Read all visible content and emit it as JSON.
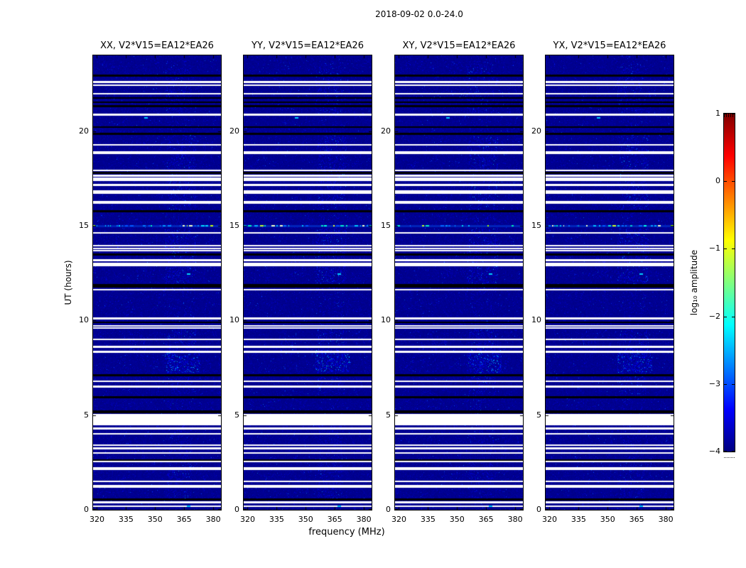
{
  "chart_data": {
    "type": "heatmap",
    "title": "2018-09-02 0.0-24.0",
    "panels": [
      {
        "title": "XX, V2*V15=EA12*EA26"
      },
      {
        "title": "YY, V2*V15=EA12*EA26"
      },
      {
        "title": "XY, V2*V15=EA12*EA26"
      },
      {
        "title": "YX, V2*V15=EA12*EA26"
      }
    ],
    "x_axis": {
      "label": "frequency (MHz)",
      "range": [
        318,
        384
      ],
      "ticks": [
        320,
        335,
        350,
        365,
        380
      ]
    },
    "y_axis": {
      "label": "UT (hours)",
      "range": [
        0,
        24
      ],
      "ticks": [
        0,
        5,
        10,
        15,
        20
      ]
    },
    "colorbar": {
      "label": "log₁₀ amplitude",
      "range": [
        -4,
        1
      ],
      "ticks": [
        1,
        0,
        -1,
        -2,
        -3,
        -4
      ],
      "colormap": "jet",
      "gradient_stops": [
        [
          "#000080",
          0
        ],
        [
          "#0000ff",
          0.125
        ],
        [
          "#00ffff",
          0.375
        ],
        [
          "#ffff00",
          0.625
        ],
        [
          "#ff0000",
          0.875
        ],
        [
          "#800000",
          1
        ]
      ]
    },
    "background_value_color": "#00008c",
    "grid": false,
    "missing_data_rows_ut": [
      [
        0.14,
        0.23
      ],
      [
        0.33,
        0.46
      ],
      [
        1.15,
        1.32
      ],
      [
        1.45,
        1.55
      ],
      [
        2.09,
        2.26
      ],
      [
        2.5,
        2.6
      ],
      [
        2.95,
        3.05
      ],
      [
        3.18,
        3.31
      ],
      [
        3.37,
        3.46
      ],
      [
        3.97,
        4.06
      ],
      [
        4.23,
        4.36
      ],
      [
        4.45,
        5.05
      ],
      [
        6.44,
        6.57
      ],
      [
        6.74,
        6.84
      ],
      [
        8.28,
        8.41
      ],
      [
        8.54,
        8.67
      ],
      [
        8.95,
        9.05
      ],
      [
        9.55,
        9.63
      ],
      [
        9.67,
        9.76
      ],
      [
        10.04,
        10.17
      ],
      [
        11.58,
        11.67
      ],
      [
        12.86,
        13.06
      ],
      [
        13.13,
        13.25
      ],
      [
        13.68,
        13.73
      ],
      [
        13.79,
        13.85
      ],
      [
        13.91,
        14.0
      ],
      [
        14.58,
        14.67
      ],
      [
        16.16,
        16.32
      ],
      [
        16.69,
        16.89
      ],
      [
        17.1,
        17.22
      ],
      [
        17.36,
        17.56
      ],
      [
        17.6,
        17.7
      ],
      [
        17.88,
        17.97
      ],
      [
        18.79,
        18.95
      ],
      [
        19.24,
        19.32
      ],
      [
        20.81,
        20.94
      ],
      [
        21.94,
        22.02
      ],
      [
        22.39,
        22.47
      ],
      [
        22.54,
        22.66
      ]
    ],
    "black_rows_ut": [
      [
        0.48,
        0.61
      ],
      [
        2.58,
        2.67
      ],
      [
        5.09,
        5.26
      ],
      [
        5.88,
        6.01
      ],
      [
        7.04,
        7.17
      ],
      [
        9.85,
        9.95
      ],
      [
        11.73,
        11.94
      ],
      [
        13.42,
        13.55
      ],
      [
        15.7,
        15.84
      ],
      [
        17.75,
        17.86
      ],
      [
        19.79,
        19.92
      ],
      [
        20.16,
        20.26
      ],
      [
        21.25,
        21.39
      ],
      [
        21.48,
        21.57
      ],
      [
        21.7,
        21.8
      ],
      [
        22.87,
        23.0
      ]
    ],
    "bright_row_ut": [
      14.93,
      15.05
    ],
    "rfi_patches": [
      {
        "ut": [
          7.25,
          8.45
        ],
        "mhz": [
          355,
          373
        ],
        "intensity": 1.0
      },
      {
        "ut": [
          8.45,
          9.6
        ],
        "mhz": [
          356,
          371
        ],
        "intensity": 0.5
      },
      {
        "ut": [
          6.1,
          7.25
        ],
        "mhz": [
          356,
          370
        ],
        "intensity": 0.45
      },
      {
        "ut": [
          11.6,
          14.9
        ],
        "mhz": [
          355,
          371
        ],
        "intensity": 0.55
      },
      {
        "ut": [
          15.8,
          19.9
        ],
        "mhz": [
          356,
          371
        ],
        "intensity": 0.5
      },
      {
        "ut": [
          20.8,
          23.4
        ],
        "mhz": [
          355,
          369
        ],
        "intensity": 0.4
      },
      {
        "ut": [
          0.6,
          2.7
        ],
        "mhz": [
          356,
          369
        ],
        "intensity": 0.35
      },
      {
        "ut": [
          3.4,
          4.4
        ],
        "mhz": [
          357,
          368
        ],
        "intensity": 0.3
      },
      {
        "ut": [
          8.2,
          9.2
        ],
        "mhz": [
          337,
          345
        ],
        "intensity": 0.3
      },
      {
        "ut": [
          12.3,
          13.6
        ],
        "mhz": [
          343,
          350
        ],
        "intensity": 0.25
      },
      {
        "ut": [
          0,
          24
        ],
        "mhz": [
          357,
          369
        ],
        "intensity": 0.15
      }
    ],
    "bright_dashes": [
      {
        "ut": 12.45,
        "mhz": 367
      },
      {
        "ut": 0.18,
        "mhz": 367
      },
      {
        "ut": 20.7,
        "mhz": 345
      }
    ]
  }
}
